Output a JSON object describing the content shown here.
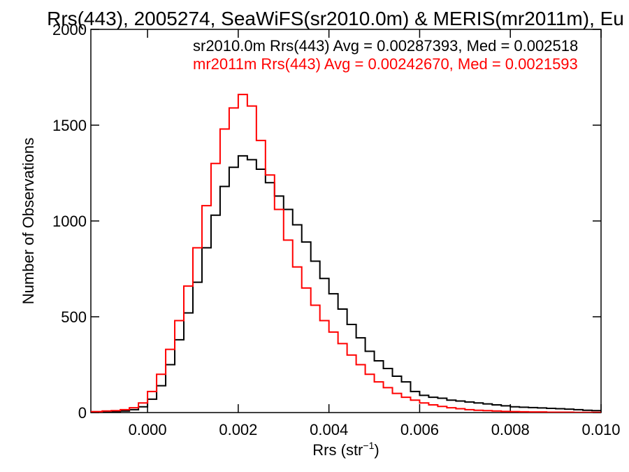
{
  "chart_data": {
    "type": "line",
    "title": "Rrs(443), 2005274, SeaWiFS(sr2010.0m) & MERIS(mr2011m), Eu",
    "xlabel": "Rrs (str",
    "xlabel_superscript": "−1",
    "xlabel_suffix": ")",
    "ylabel": "Number of Observations",
    "xlim": [
      -0.00125,
      0.01
    ],
    "ylim": [
      0,
      2000
    ],
    "x_ticks": [
      0.0,
      0.002,
      0.004,
      0.006,
      0.008,
      0.01
    ],
    "x_tick_labels": [
      "0.000",
      "0.002",
      "0.004",
      "0.006",
      "0.008",
      "0.010"
    ],
    "y_ticks": [
      0,
      500,
      1000,
      1500,
      2000
    ],
    "y_tick_labels": [
      "0",
      "500",
      "1000",
      "1500",
      "2000"
    ],
    "step": "histogram",
    "grid": false,
    "legend_placement": "top-right",
    "annotations": [
      {
        "text": "sr2010.0m Rrs(443) Avg = 0.00287393, Med = 0.002518",
        "color": "#000000"
      },
      {
        "text": "mr2011m Rrs(443) Avg = 0.00242670, Med = 0.0021593",
        "color": "#ff0000"
      }
    ],
    "series": [
      {
        "color": "#000000",
        "x": [
          -0.00125,
          -0.001,
          -0.0008,
          -0.0006,
          -0.0004,
          -0.0002,
          0.0,
          0.0002,
          0.0004,
          0.0006,
          0.0008,
          0.001,
          0.0012,
          0.0014,
          0.0016,
          0.0018,
          0.002,
          0.0022,
          0.0024,
          0.0026,
          0.0028,
          0.003,
          0.0032,
          0.0034,
          0.0036,
          0.0038,
          0.004,
          0.0042,
          0.0044,
          0.0046,
          0.0048,
          0.005,
          0.0052,
          0.0054,
          0.0056,
          0.0058,
          0.006,
          0.0062,
          0.0064,
          0.0066,
          0.0068,
          0.007,
          0.0072,
          0.0074,
          0.0076,
          0.0078,
          0.008,
          0.0082,
          0.0084,
          0.0086,
          0.0088,
          0.009,
          0.0092,
          0.0094,
          0.0096,
          0.0098,
          0.01
        ],
        "y": [
          0,
          3,
          5,
          8,
          15,
          30,
          70,
          140,
          250,
          380,
          520,
          680,
          860,
          1030,
          1180,
          1280,
          1340,
          1320,
          1270,
          1200,
          1130,
          1060,
          980,
          890,
          790,
          700,
          620,
          540,
          460,
          390,
          320,
          270,
          230,
          190,
          160,
          110,
          90,
          80,
          75,
          65,
          60,
          55,
          50,
          45,
          40,
          35,
          30,
          28,
          26,
          24,
          22,
          20,
          18,
          15,
          12,
          10,
          8
        ]
      },
      {
        "color": "#ff0000",
        "x": [
          -0.00125,
          -0.001,
          -0.0008,
          -0.0006,
          -0.0004,
          -0.0002,
          0.0,
          0.0002,
          0.0004,
          0.0006,
          0.0008,
          0.001,
          0.0012,
          0.0014,
          0.0016,
          0.0018,
          0.002,
          0.0022,
          0.0024,
          0.0026,
          0.0028,
          0.003,
          0.0032,
          0.0034,
          0.0036,
          0.0038,
          0.004,
          0.0042,
          0.0044,
          0.0046,
          0.0048,
          0.005,
          0.0052,
          0.0054,
          0.0056,
          0.0058,
          0.006,
          0.0062,
          0.0064,
          0.0066,
          0.0068,
          0.007,
          0.0072,
          0.0074,
          0.0076,
          0.0078,
          0.008,
          0.0082,
          0.0084,
          0.0086,
          0.0088,
          0.009,
          0.0092,
          0.0094,
          0.0096,
          0.0098,
          0.01
        ],
        "y": [
          5,
          8,
          10,
          15,
          25,
          50,
          110,
          200,
          330,
          480,
          660,
          860,
          1080,
          1300,
          1480,
          1590,
          1660,
          1600,
          1420,
          1240,
          1060,
          900,
          760,
          650,
          560,
          480,
          420,
          360,
          300,
          250,
          200,
          160,
          130,
          100,
          80,
          65,
          50,
          40,
          32,
          25,
          20,
          15,
          12,
          10,
          8,
          6,
          5,
          4,
          3,
          3,
          2,
          2,
          2,
          1,
          1,
          1,
          1
        ]
      }
    ]
  }
}
